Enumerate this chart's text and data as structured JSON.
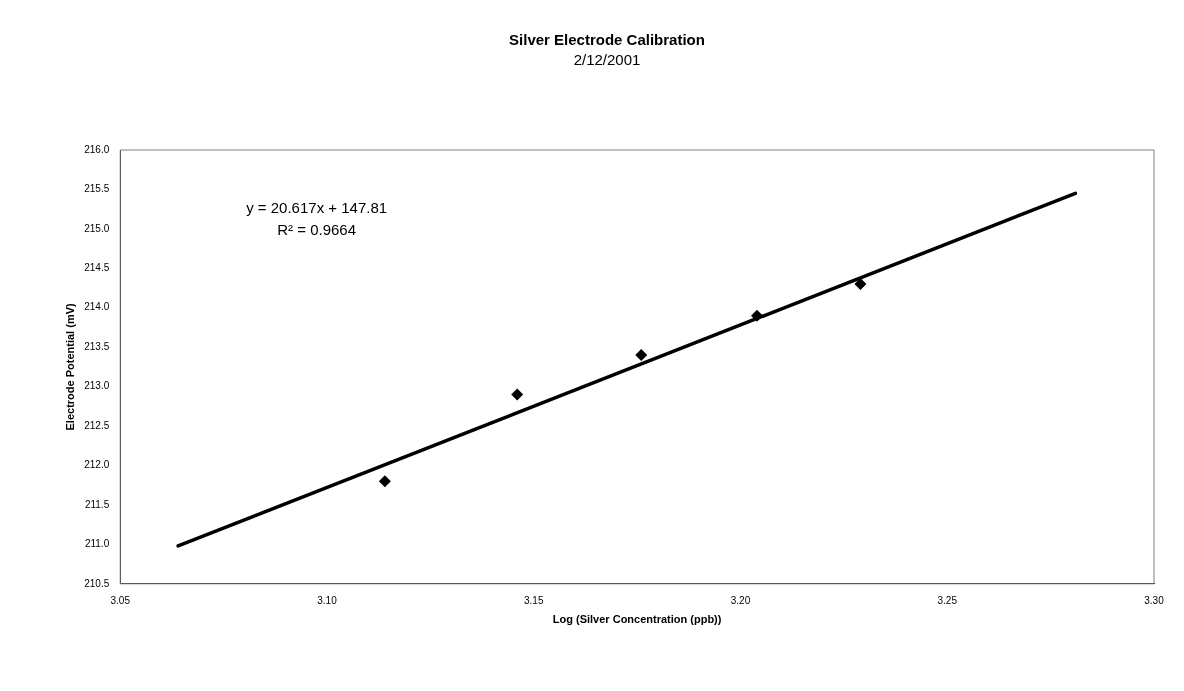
{
  "chart_data": {
    "type": "scatter",
    "title": "Silver Electrode Calibration",
    "subtitle": "2/12/2001",
    "xlabel": "Log (Silver Concentration (ppb))",
    "ylabel": "Electrode Potential (mV)",
    "x": [
      3.114,
      3.146,
      3.176,
      3.204,
      3.229
    ],
    "series": [
      {
        "type": "scatter",
        "color": "#000000",
        "marker": "diamond",
        "values": [
          211.8,
          212.9,
          213.4,
          213.9,
          214.3
        ]
      },
      {
        "type": "line",
        "color": "#000000",
        "marker": "none",
        "line_style": "solid",
        "x": [
          3.064,
          3.281
        ],
        "values": [
          210.98,
          215.45
        ]
      }
    ],
    "annotations": [
      "y = 20.617x + 147.81",
      "R² = 0.9664"
    ],
    "xlim": [
      3.05,
      3.3
    ],
    "xticks": [
      {
        "value": 3.05,
        "label": "3.05"
      },
      {
        "value": 3.1,
        "label": "3.10"
      },
      {
        "value": 3.15,
        "label": "3.15"
      },
      {
        "value": 3.2,
        "label": "3.20"
      },
      {
        "value": 3.25,
        "label": "3.25"
      },
      {
        "value": 3.3,
        "label": "3.30"
      }
    ],
    "ylim": [
      210.5,
      216.0
    ],
    "yticks": [
      {
        "value": 210.5,
        "label": "210.5"
      },
      {
        "value": 211.0,
        "label": "211.0"
      },
      {
        "value": 211.5,
        "label": "211.5"
      },
      {
        "value": 212.0,
        "label": "212.0"
      },
      {
        "value": 212.5,
        "label": "212.5"
      },
      {
        "value": 213.0,
        "label": "213.0"
      },
      {
        "value": 213.5,
        "label": "213.5"
      },
      {
        "value": 214.0,
        "label": "214.0"
      },
      {
        "value": 214.5,
        "label": "214.5"
      },
      {
        "value": 215.0,
        "label": "215.0"
      },
      {
        "value": 215.5,
        "label": "215.5"
      },
      {
        "value": 216.0,
        "label": "216.0"
      }
    ],
    "grid": false,
    "legend": false
  }
}
